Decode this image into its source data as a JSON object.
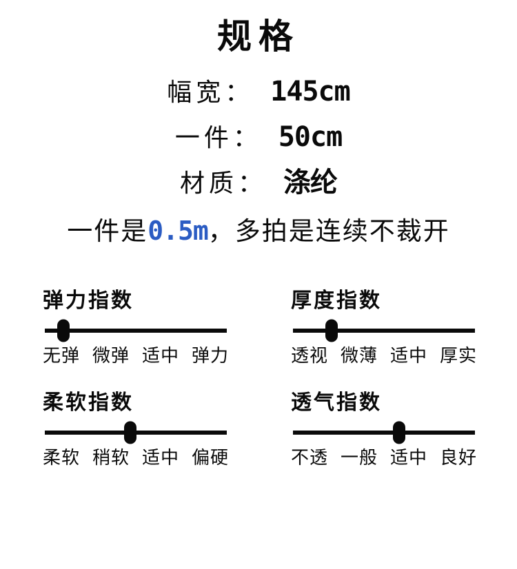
{
  "title": "规格",
  "colors": {
    "highlight_blue": "#2b5cc3",
    "ink": "#0a0a0a"
  },
  "specs": [
    {
      "label": "幅宽：",
      "value": "145cm"
    },
    {
      "label": "一件：",
      "value": "50cm"
    },
    {
      "label": "材质：",
      "value": "涤纶"
    }
  ],
  "note": {
    "prefix": "一件是",
    "highlight": "0.5m",
    "suffix": "，多拍是连续不裁开"
  },
  "sliders": [
    {
      "title": "弹力指数",
      "labels": [
        "无弹",
        "微弹",
        "适中",
        "弹力"
      ],
      "position_pct": 11
    },
    {
      "title": "厚度指数",
      "labels": [
        "透视",
        "微薄",
        "适中",
        "厚实"
      ],
      "position_pct": 22
    },
    {
      "title": "柔软指数",
      "labels": [
        "柔软",
        "稍软",
        "适中",
        "偏硬"
      ],
      "position_pct": 47
    },
    {
      "title": "透气指数",
      "labels": [
        "不透",
        "一般",
        "适中",
        "良好"
      ],
      "position_pct": 58
    }
  ]
}
